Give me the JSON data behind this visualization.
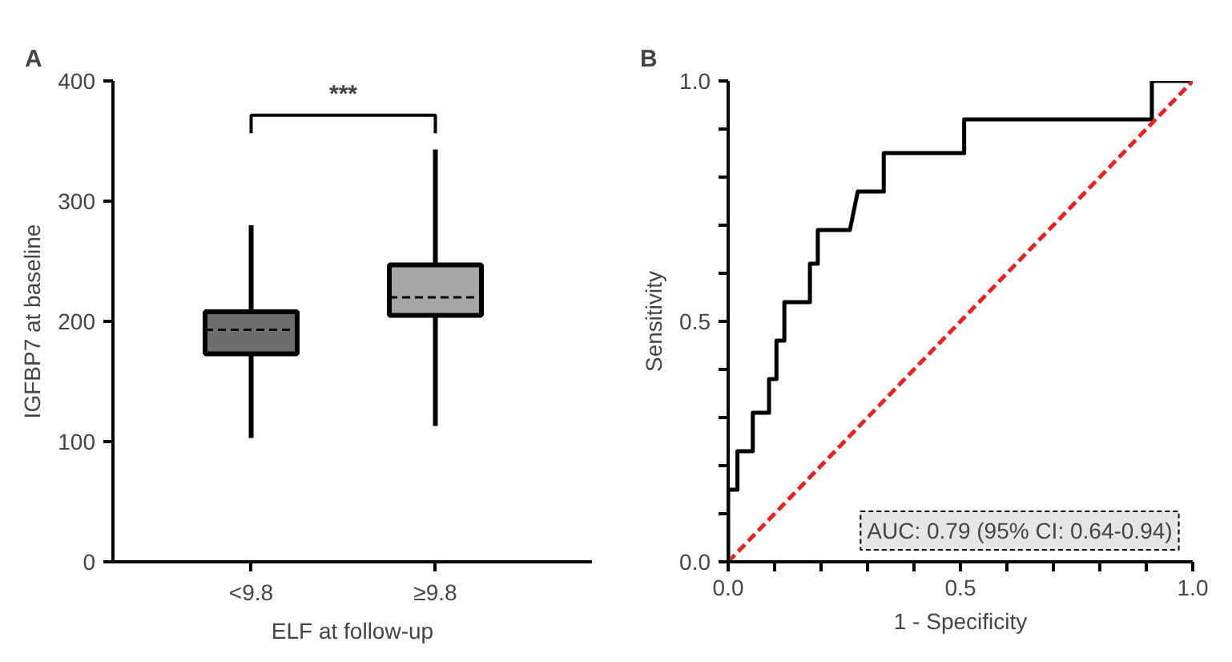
{
  "chart_data": [
    {
      "type": "box",
      "title": "A",
      "xlabel": "ELF at follow-up",
      "ylabel": "IGFBP7 at baseline",
      "categories": [
        "<9.8",
        "≥9.8"
      ],
      "colors": [
        "#6e6e6e",
        "#a6a6a6"
      ],
      "boxes": [
        {
          "low": 103,
          "q1": 173,
          "median": 193,
          "q3": 208,
          "high": 280
        },
        {
          "low": 113,
          "q1": 205,
          "median": 220,
          "q3": 247,
          "high": 343
        }
      ],
      "ylim": [
        0,
        400
      ],
      "yticks": [
        0,
        100,
        200,
        300,
        400
      ],
      "annotations": [
        "***"
      ],
      "grid": false
    },
    {
      "type": "line",
      "title": "B",
      "xlabel": "1 - Specificity",
      "ylabel": "Sensitivity",
      "series": [
        {
          "color": "#000000",
          "line_style": "solid",
          "x": [
            0,
            0,
            0.02,
            0.02,
            0.053,
            0.053,
            0.088,
            0.088,
            0.104,
            0.104,
            0.121,
            0.121,
            0.176,
            0.176,
            0.193,
            0.193,
            0.262,
            0.279,
            0.335,
            0.335,
            0.508,
            0.508,
            0.912,
            0.912,
            1
          ],
          "values": [
            0,
            0.15,
            0.15,
            0.23,
            0.23,
            0.31,
            0.31,
            0.38,
            0.38,
            0.46,
            0.46,
            0.54,
            0.54,
            0.62,
            0.62,
            0.69,
            0.69,
            0.77,
            0.77,
            0.85,
            0.85,
            0.92,
            0.92,
            1,
            1
          ]
        },
        {
          "color": "#e8231f",
          "line_style": "dashed",
          "x": [
            0,
            1
          ],
          "values": [
            0,
            1
          ]
        }
      ],
      "xlim": [
        0,
        1
      ],
      "ylim": [
        0,
        1
      ],
      "xticks": [
        {
          "value": 0,
          "label": "0.0"
        },
        {
          "value": 0.1,
          "label": null
        },
        {
          "value": 0.2,
          "label": null
        },
        {
          "value": 0.3,
          "label": null
        },
        {
          "value": 0.4,
          "label": null
        },
        {
          "value": 0.5,
          "label": "0.5"
        },
        {
          "value": 0.6,
          "label": null
        },
        {
          "value": 0.7,
          "label": null
        },
        {
          "value": 0.8,
          "label": null
        },
        {
          "value": 0.9,
          "label": null
        },
        {
          "value": 1,
          "label": "1.0"
        }
      ],
      "yticks": [
        {
          "value": 0,
          "label": "0.0"
        },
        {
          "value": 0.1,
          "label": null
        },
        {
          "value": 0.2,
          "label": null
        },
        {
          "value": 0.3,
          "label": null
        },
        {
          "value": 0.4,
          "label": null
        },
        {
          "value": 0.5,
          "label": "0.5"
        },
        {
          "value": 0.6,
          "label": null
        },
        {
          "value": 0.7,
          "label": null
        },
        {
          "value": 0.8,
          "label": null
        },
        {
          "value": 0.9,
          "label": null
        },
        {
          "value": 1,
          "label": "1.0"
        }
      ],
      "annotations": [
        "AUC: 0.79 (95% CI: 0.64-0.94)"
      ],
      "grid": false,
      "marker": "none"
    }
  ]
}
